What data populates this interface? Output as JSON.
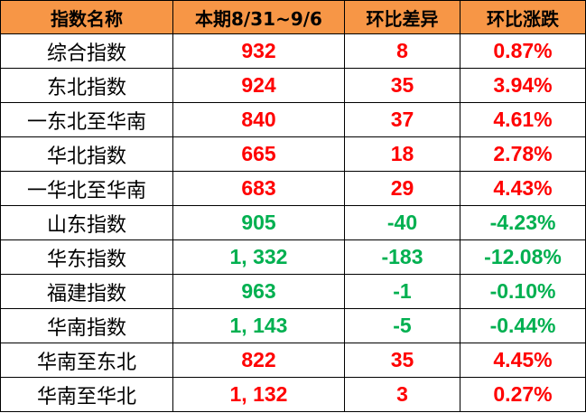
{
  "colors": {
    "header_bg": "#F79646",
    "up": "#FF0000",
    "down": "#00B050"
  },
  "headers": [
    "指数名称",
    "本期8/31~9/6",
    "环比差异",
    "环比涨跌"
  ],
  "rows": [
    {
      "name": "综合指数",
      "value": "932",
      "diff": "8",
      "pct": "0.87%",
      "trend": "up"
    },
    {
      "name": "东北指数",
      "value": "924",
      "diff": "35",
      "pct": "3.94%",
      "trend": "up"
    },
    {
      "name": "一东北至华南",
      "value": "840",
      "diff": "37",
      "pct": "4.61%",
      "trend": "up"
    },
    {
      "name": "华北指数",
      "value": "665",
      "diff": "18",
      "pct": "2.78%",
      "trend": "up"
    },
    {
      "name": "一华北至华南",
      "value": "683",
      "diff": "29",
      "pct": "4.43%",
      "trend": "up"
    },
    {
      "name": "山东指数",
      "value": "905",
      "diff": "-40",
      "pct": "-4.23%",
      "trend": "down"
    },
    {
      "name": "华东指数",
      "value": "1, 332",
      "diff": "-183",
      "pct": "-12.08%",
      "trend": "down"
    },
    {
      "name": "福建指数",
      "value": "963",
      "diff": "-1",
      "pct": "-0.10%",
      "trend": "down"
    },
    {
      "name": "华南指数",
      "value": "1, 143",
      "diff": "-5",
      "pct": "-0.44%",
      "trend": "down"
    },
    {
      "name": "华南至东北",
      "value": "822",
      "diff": "35",
      "pct": "4.45%",
      "trend": "up"
    },
    {
      "name": "华南至华北",
      "value": "1, 132",
      "diff": "3",
      "pct": "0.27%",
      "trend": "up"
    }
  ]
}
